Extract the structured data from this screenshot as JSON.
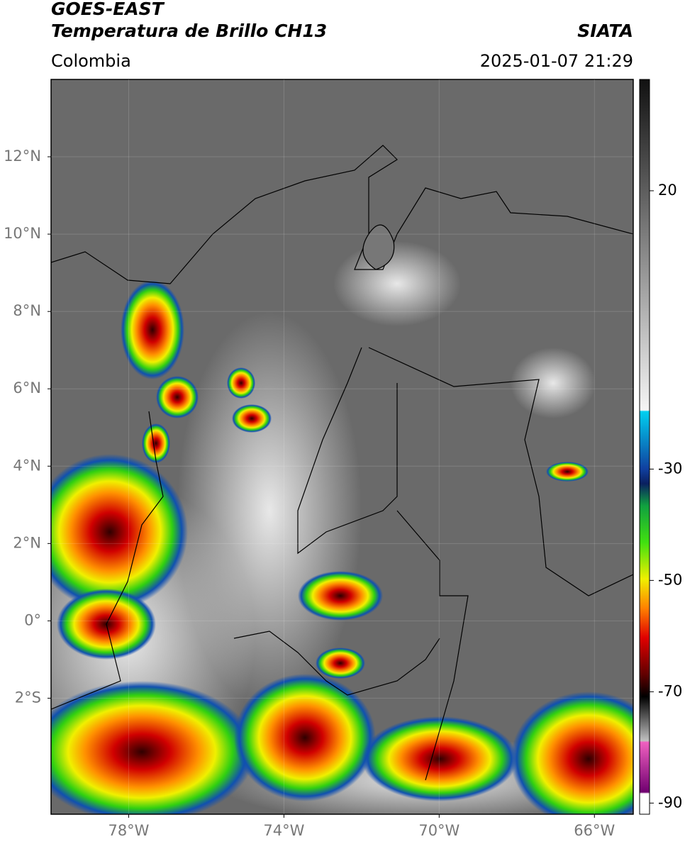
{
  "chart_data": {
    "type": "map",
    "title": "GOES-EAST",
    "subtitle": "Temperatura de Brillo CH13",
    "source": "SIATA",
    "region": "Colombia",
    "timestamp": "2025-01-07 21:29",
    "xlim": [
      -80,
      -65
    ],
    "ylim": [
      -5,
      14
    ],
    "xticks": [
      {
        "value": -78,
        "label": "78°W"
      },
      {
        "value": -74,
        "label": "74°W"
      },
      {
        "value": -70,
        "label": "70°W"
      },
      {
        "value": -66,
        "label": "66°W"
      }
    ],
    "yticks": [
      {
        "value": 12,
        "label": "12°N"
      },
      {
        "value": 10,
        "label": "10°N"
      },
      {
        "value": 8,
        "label": "8°N"
      },
      {
        "value": 6,
        "label": "6°N"
      },
      {
        "value": 4,
        "label": "4°N"
      },
      {
        "value": 2,
        "label": "2°N"
      },
      {
        "value": 0,
        "label": "0°"
      },
      {
        "value": -2,
        "label": "2°S"
      }
    ],
    "grid": true,
    "colorbar": {
      "lim": [
        -92,
        40
      ],
      "ticks": [
        20,
        -30,
        -50,
        -70,
        -90
      ]
    }
  }
}
